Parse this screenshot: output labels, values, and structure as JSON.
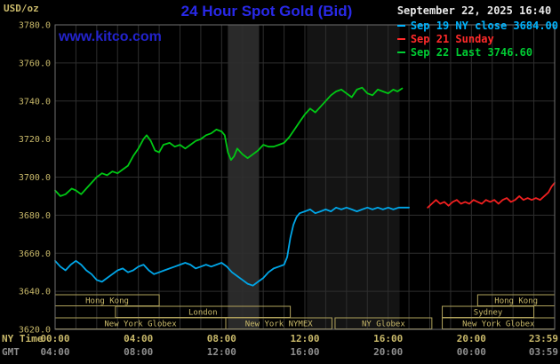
{
  "header": {
    "unit_label": "USD/oz",
    "title": "24 Hour Spot Gold (Bid)",
    "watermark": "www.kitco.com",
    "datetime": "September 22, 2025 16:40"
  },
  "legend": {
    "entries": [
      {
        "label": "Sep 19 NY close 3684.00",
        "color": "#00b4ff"
      },
      {
        "label": "Sep 21 Sunday",
        "color": "#ff2a2a"
      },
      {
        "label": "Sep 22 Last 3746.60",
        "color": "#00cc33"
      }
    ]
  },
  "chart_data": {
    "type": "line",
    "title": "24 Hour Spot Gold (Bid)",
    "ylabel": "USD/oz",
    "ylim": [
      3620,
      3780
    ],
    "y_tick_step": 20,
    "y_ticks": [
      3780,
      3760,
      3740,
      3720,
      3700,
      3680,
      3660,
      3640,
      3620
    ],
    "xlim_hours": [
      0,
      24
    ],
    "grid": true,
    "x_axis": {
      "ny": {
        "label": "NY Time",
        "tick_hours": [
          0,
          4,
          8,
          12,
          16,
          20,
          23.983
        ],
        "tick_labels": [
          "00:00",
          "04:00",
          "08:00",
          "12:00",
          "16:00",
          "20:00",
          "23:59"
        ]
      },
      "gmt": {
        "label": "GMT",
        "tick_labels": [
          "04:00",
          "08:00",
          "12:00",
          "16:00",
          "20:00",
          "00:00",
          "03:59"
        ]
      }
    },
    "colors": {
      "background": "#000000",
      "grid": "#2e2e2e",
      "plot_border": "#6f6f6f",
      "axis_text": "#c9b96a",
      "gmt_text": "#8f8f8f",
      "session": "#b1a35c",
      "title": "#2929e8",
      "watermark": "#2323cc",
      "date_text": "#e8e8e8"
    },
    "bands": [
      {
        "start": 8.3,
        "end": 9.8,
        "color": "#2a2a2a"
      },
      {
        "start": 12.1,
        "end": 16.55,
        "color": "#141414"
      }
    ],
    "sessions": [
      {
        "row": 0,
        "label": "Hong Kong",
        "start": 0,
        "end": 5
      },
      {
        "row": 0,
        "label": "Hong Kong",
        "start": 20.3,
        "end": 24
      },
      {
        "row": 1,
        "label": "London",
        "start": 2.9,
        "end": 11.3
      },
      {
        "row": 1,
        "label": "Sydney",
        "start": 18.6,
        "end": 23.0
      },
      {
        "row": 2,
        "label": "New York Globex",
        "start": 0,
        "end": 8.2
      },
      {
        "row": 2,
        "label": "New York NYMEX",
        "start": 8.2,
        "end": 13.3
      },
      {
        "row": 2,
        "label": "NY Globex",
        "start": 13.45,
        "end": 18.1
      },
      {
        "row": 2,
        "label": "New York Globex",
        "start": 18.6,
        "end": 24
      }
    ],
    "series": [
      {
        "name": "Sep 19 NY close",
        "color": "#00a6e8",
        "points": [
          [
            0,
            3656
          ],
          [
            0.25,
            3653
          ],
          [
            0.5,
            3651
          ],
          [
            0.75,
            3654
          ],
          [
            1,
            3656
          ],
          [
            1.25,
            3654
          ],
          [
            1.5,
            3651
          ],
          [
            1.75,
            3649
          ],
          [
            2,
            3646
          ],
          [
            2.25,
            3645
          ],
          [
            2.5,
            3647
          ],
          [
            2.75,
            3649
          ],
          [
            3,
            3651
          ],
          [
            3.25,
            3652
          ],
          [
            3.5,
            3650
          ],
          [
            3.75,
            3651
          ],
          [
            4,
            3653
          ],
          [
            4.25,
            3654
          ],
          [
            4.5,
            3651
          ],
          [
            4.75,
            3649
          ],
          [
            5,
            3650
          ],
          [
            5.25,
            3651
          ],
          [
            5.5,
            3652
          ],
          [
            5.75,
            3653
          ],
          [
            6,
            3654
          ],
          [
            6.25,
            3655
          ],
          [
            6.5,
            3654
          ],
          [
            6.75,
            3652
          ],
          [
            7,
            3653
          ],
          [
            7.25,
            3654
          ],
          [
            7.5,
            3653
          ],
          [
            7.75,
            3654
          ],
          [
            8,
            3655
          ],
          [
            8.25,
            3653
          ],
          [
            8.5,
            3650
          ],
          [
            8.75,
            3648
          ],
          [
            9,
            3646
          ],
          [
            9.25,
            3644
          ],
          [
            9.5,
            3643
          ],
          [
            9.75,
            3645
          ],
          [
            10,
            3647
          ],
          [
            10.25,
            3650
          ],
          [
            10.5,
            3652
          ],
          [
            10.75,
            3653
          ],
          [
            11,
            3654
          ],
          [
            11.15,
            3658
          ],
          [
            11.3,
            3668
          ],
          [
            11.45,
            3675
          ],
          [
            11.6,
            3679
          ],
          [
            11.75,
            3681
          ],
          [
            12,
            3682
          ],
          [
            12.25,
            3683
          ],
          [
            12.5,
            3681
          ],
          [
            12.75,
            3682
          ],
          [
            13,
            3683
          ],
          [
            13.25,
            3682
          ],
          [
            13.5,
            3684
          ],
          [
            13.75,
            3683
          ],
          [
            14,
            3684
          ],
          [
            14.25,
            3683
          ],
          [
            14.5,
            3682
          ],
          [
            14.75,
            3683
          ],
          [
            15,
            3684
          ],
          [
            15.25,
            3683
          ],
          [
            15.5,
            3684
          ],
          [
            15.75,
            3683
          ],
          [
            16,
            3684
          ],
          [
            16.25,
            3683
          ],
          [
            16.5,
            3684
          ],
          [
            16.75,
            3684
          ],
          [
            17,
            3684
          ]
        ]
      },
      {
        "name": "Sep 21 Sunday",
        "color": "#f02020",
        "points": [
          [
            17.9,
            3684
          ],
          [
            18.1,
            3686
          ],
          [
            18.3,
            3688
          ],
          [
            18.5,
            3686
          ],
          [
            18.7,
            3687
          ],
          [
            18.9,
            3685
          ],
          [
            19.1,
            3687
          ],
          [
            19.3,
            3688
          ],
          [
            19.5,
            3686
          ],
          [
            19.7,
            3687
          ],
          [
            19.9,
            3686
          ],
          [
            20.1,
            3688
          ],
          [
            20.3,
            3687
          ],
          [
            20.5,
            3686
          ],
          [
            20.7,
            3688
          ],
          [
            20.9,
            3687
          ],
          [
            21.1,
            3688
          ],
          [
            21.3,
            3686
          ],
          [
            21.5,
            3688
          ],
          [
            21.7,
            3689
          ],
          [
            21.9,
            3687
          ],
          [
            22.1,
            3688
          ],
          [
            22.3,
            3690
          ],
          [
            22.5,
            3688
          ],
          [
            22.7,
            3689
          ],
          [
            22.9,
            3688
          ],
          [
            23.1,
            3689
          ],
          [
            23.3,
            3688
          ],
          [
            23.5,
            3690
          ],
          [
            23.7,
            3692
          ],
          [
            23.85,
            3695
          ],
          [
            24,
            3697
          ]
        ]
      },
      {
        "name": "Sep 22 Last",
        "color": "#00c814",
        "points": [
          [
            0,
            3693
          ],
          [
            0.25,
            3690
          ],
          [
            0.5,
            3691
          ],
          [
            0.8,
            3694
          ],
          [
            1,
            3693
          ],
          [
            1.25,
            3691
          ],
          [
            1.5,
            3694
          ],
          [
            1.75,
            3697
          ],
          [
            2,
            3700
          ],
          [
            2.25,
            3702
          ],
          [
            2.5,
            3701
          ],
          [
            2.75,
            3703
          ],
          [
            3,
            3702
          ],
          [
            3.25,
            3704
          ],
          [
            3.5,
            3706
          ],
          [
            3.75,
            3711
          ],
          [
            4,
            3715
          ],
          [
            4.25,
            3720
          ],
          [
            4.4,
            3722
          ],
          [
            4.6,
            3719
          ],
          [
            4.8,
            3714
          ],
          [
            5,
            3713
          ],
          [
            5.2,
            3717
          ],
          [
            5.5,
            3718
          ],
          [
            5.75,
            3716
          ],
          [
            6,
            3717
          ],
          [
            6.25,
            3715
          ],
          [
            6.5,
            3717
          ],
          [
            6.75,
            3719
          ],
          [
            7,
            3720
          ],
          [
            7.25,
            3722
          ],
          [
            7.5,
            3723
          ],
          [
            7.75,
            3725
          ],
          [
            8,
            3724
          ],
          [
            8.15,
            3722
          ],
          [
            8.3,
            3713
          ],
          [
            8.45,
            3709
          ],
          [
            8.6,
            3711
          ],
          [
            8.75,
            3715
          ],
          [
            9,
            3712
          ],
          [
            9.25,
            3710
          ],
          [
            9.5,
            3712
          ],
          [
            9.75,
            3714
          ],
          [
            10,
            3717
          ],
          [
            10.25,
            3716
          ],
          [
            10.5,
            3716
          ],
          [
            10.75,
            3717
          ],
          [
            11,
            3718
          ],
          [
            11.25,
            3721
          ],
          [
            11.5,
            3725
          ],
          [
            11.75,
            3729
          ],
          [
            12,
            3733
          ],
          [
            12.25,
            3736
          ],
          [
            12.5,
            3734
          ],
          [
            12.75,
            3737
          ],
          [
            13,
            3740
          ],
          [
            13.25,
            3743
          ],
          [
            13.5,
            3745
          ],
          [
            13.75,
            3746
          ],
          [
            14,
            3744
          ],
          [
            14.25,
            3742
          ],
          [
            14.5,
            3746
          ],
          [
            14.75,
            3747
          ],
          [
            15,
            3744
          ],
          [
            15.25,
            3743
          ],
          [
            15.5,
            3746
          ],
          [
            15.75,
            3745
          ],
          [
            16,
            3744
          ],
          [
            16.25,
            3746
          ],
          [
            16.45,
            3745
          ],
          [
            16.67,
            3746.6
          ]
        ]
      }
    ]
  }
}
